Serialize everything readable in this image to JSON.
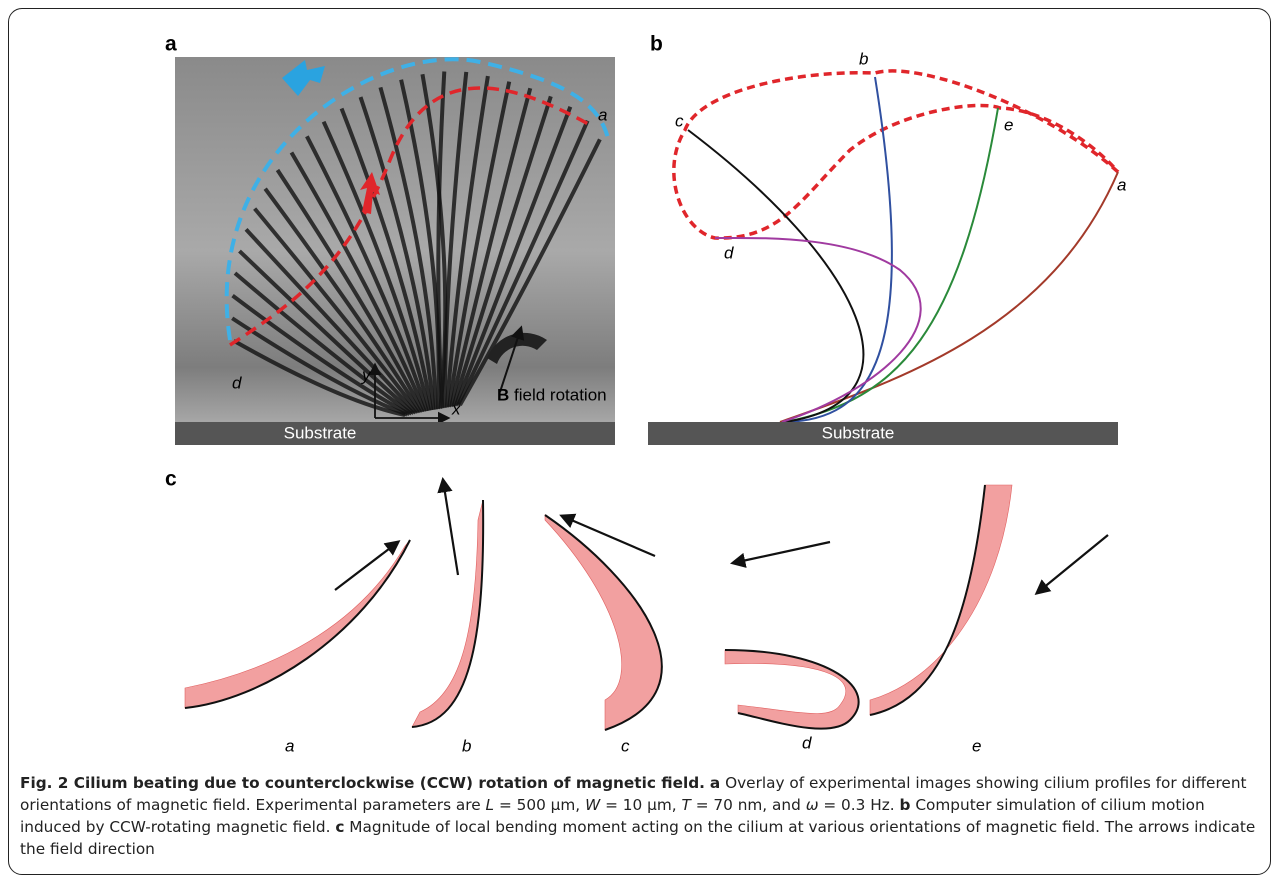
{
  "panels": {
    "a": {
      "label": "a",
      "labels": {
        "a": "a",
        "d": "d",
        "y": "y",
        "x": "x",
        "bold": "B",
        "rotation": "field rotation",
        "substrate": "Substrate"
      }
    },
    "b": {
      "label": "b",
      "labels": {
        "b": "b",
        "c": "c",
        "e": "e",
        "a": "a",
        "d": "d",
        "substrate": "Substrate"
      }
    },
    "c": {
      "label": "c",
      "labels": [
        "a",
        "b",
        "c",
        "d",
        "e"
      ]
    }
  },
  "caption": {
    "parts": [
      "Fig. 2 Cilium beating due to counterclockwise (CCW) rotation of magnetic field.",
      "a",
      "Overlay of experimental images showing cilium profiles for different orientations of magnetic field. Experimental parameters are",
      "L",
      "= 500 µm,",
      "W",
      "= 10 µm,",
      "T",
      "= 70 nm, and",
      "ω",
      "= 0.3 Hz.",
      "b",
      "Computer simulation of cilium motion induced by CCW-rotating magnetic field.",
      "c",
      "Magnitude of local bending moment acting on the cilium at various orientations of magnetic field. The arrows indicate the field direction"
    ]
  }
}
